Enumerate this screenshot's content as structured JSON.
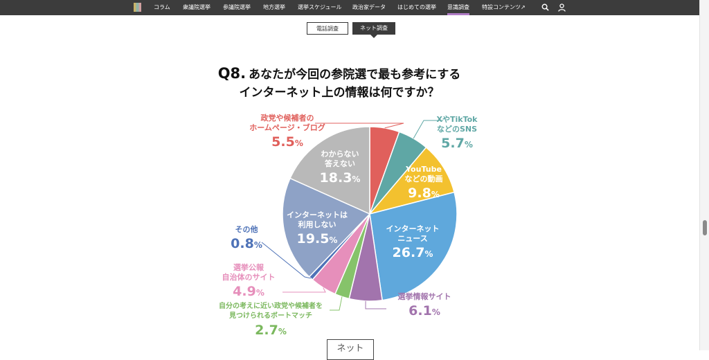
{
  "nav": {
    "items": [
      "コラム",
      "衆議院選挙",
      "参議院選挙",
      "地方選挙",
      "選挙スケジュール",
      "政治家データ",
      "はじめての選挙",
      "意識調査",
      "特設コンテンツ"
    ],
    "active_index": 7,
    "ext_icon": "external-link-icon"
  },
  "tabs": [
    "電話調査",
    "ネット調査"
  ],
  "active_tab": 1,
  "question": {
    "number": "Q8.",
    "line1": "あなたが今回の参院選で最も参考にする",
    "line2": "インターネット上の情報は何ですか？"
  },
  "next_button": "ネット",
  "chart_data": {
    "type": "pie",
    "unit": "%",
    "start_angle_deg": 0,
    "direction": "clockwise",
    "slices": [
      {
        "label": "政党や候補者のホームページ・ブログ",
        "value": 5.5,
        "color": "#e0605c"
      },
      {
        "label": "XやTikTokなどのSNS",
        "value": 5.7,
        "color": "#5fa7a5"
      },
      {
        "label": "YouTubeなどの動画",
        "value": 9.8,
        "color": "#f3c12f"
      },
      {
        "label": "インターネットニュース",
        "value": 26.7,
        "color": "#5fa8dc"
      },
      {
        "label": "選挙情報サイト",
        "value": 6.1,
        "color": "#a274ad"
      },
      {
        "label": "自分の考えに近い政党や候補者を見つけられるボートマッチ",
        "value": 2.7,
        "color": "#86c36a"
      },
      {
        "label": "選挙公報 自治体のサイト",
        "value": 4.9,
        "color": "#e68fbb"
      },
      {
        "label": "その他",
        "value": 0.8,
        "color": "#4e72b7"
      },
      {
        "label": "インターネットは利用しない",
        "value": 19.5,
        "color": "#8ea2c6"
      },
      {
        "label": "わからない答えない",
        "value": 18.3,
        "color": "#b9b9b9"
      }
    ]
  },
  "labels": {
    "hp_l1": "政党や候補者の",
    "hp_l2": "ホームページ・ブログ",
    "hp_v": "5.5",
    "sns_l1": "XやTikTok",
    "sns_l2": "などのSNS",
    "sns_v": "5.7",
    "yt_l1": "YouTube",
    "yt_l2": "などの動画",
    "yt_v": "9.8",
    "news_l1": "インターネット",
    "news_l2": "ニュース",
    "news_v": "26.7",
    "site_l1": "選挙情報サイト",
    "site_v": "6.1",
    "vm_l1": "自分の考えに近い政党や候補者を",
    "vm_l2": "見つけられるボートマッチ",
    "vm_v": "2.7",
    "koho_l1": "選挙公報",
    "koho_l2": "自治体のサイト",
    "koho_v": "4.9",
    "other_l1": "その他",
    "other_v": "0.8",
    "noint_l1": "インターネットは",
    "noint_l2": "利用しない",
    "noint_v": "19.5",
    "dk_l1": "わからない",
    "dk_l2": "答えない",
    "dk_v": "18.3",
    "pct": "%"
  }
}
